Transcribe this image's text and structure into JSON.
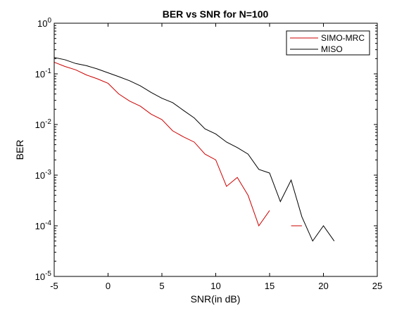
{
  "chart_data": {
    "type": "line",
    "title": "BER vs SNR for N=100",
    "xlabel": "SNR(in dB)",
    "ylabel": "BER",
    "xlim": [
      -5,
      25
    ],
    "ylim": [
      1e-05,
      1
    ],
    "yscale": "log",
    "xticks": [
      -5,
      0,
      5,
      10,
      15,
      20,
      25
    ],
    "yticks": [
      {
        "value": 1,
        "base": "10",
        "exp": "0"
      },
      {
        "value": 0.1,
        "base": "10",
        "exp": "-1"
      },
      {
        "value": 0.01,
        "base": "10",
        "exp": "-2"
      },
      {
        "value": 0.001,
        "base": "10",
        "exp": "-3"
      },
      {
        "value": 0.0001,
        "base": "10",
        "exp": "-4"
      },
      {
        "value": 1e-05,
        "base": "10",
        "exp": "-5"
      }
    ],
    "grid": false,
    "legend_position": "top-right",
    "series": [
      {
        "name": "SIMO-MRC",
        "color": "#cc0000",
        "x": [
          -5,
          -4,
          -3,
          -2,
          -1,
          0,
          1,
          2,
          3,
          4,
          5,
          6,
          7,
          8,
          9,
          10,
          11,
          12,
          13,
          14,
          15,
          16,
          17,
          18
        ],
        "y": [
          0.17,
          0.14,
          0.12,
          0.095,
          0.08,
          0.065,
          0.04,
          0.029,
          0.023,
          0.016,
          0.0125,
          0.0075,
          0.0057,
          0.0045,
          0.0026,
          0.002,
          0.0006,
          0.0009,
          0.0004,
          0.0001,
          0.0002,
          null,
          0.0001,
          0.0001
        ]
      },
      {
        "name": "MISO",
        "color": "#000000",
        "x": [
          -5,
          -4,
          -3,
          -2,
          -1,
          0,
          1,
          2,
          3,
          4,
          5,
          6,
          7,
          8,
          9,
          10,
          11,
          12,
          13,
          14,
          15,
          16,
          17,
          18,
          19,
          20,
          21
        ],
        "y": [
          0.21,
          0.19,
          0.16,
          0.145,
          0.125,
          0.105,
          0.088,
          0.073,
          0.058,
          0.043,
          0.033,
          0.027,
          0.019,
          0.0135,
          0.0082,
          0.0065,
          0.0045,
          0.0035,
          0.0026,
          0.0013,
          0.0011,
          0.0003,
          0.0008,
          0.00015,
          5e-05,
          0.0001,
          5e-05
        ]
      }
    ]
  }
}
